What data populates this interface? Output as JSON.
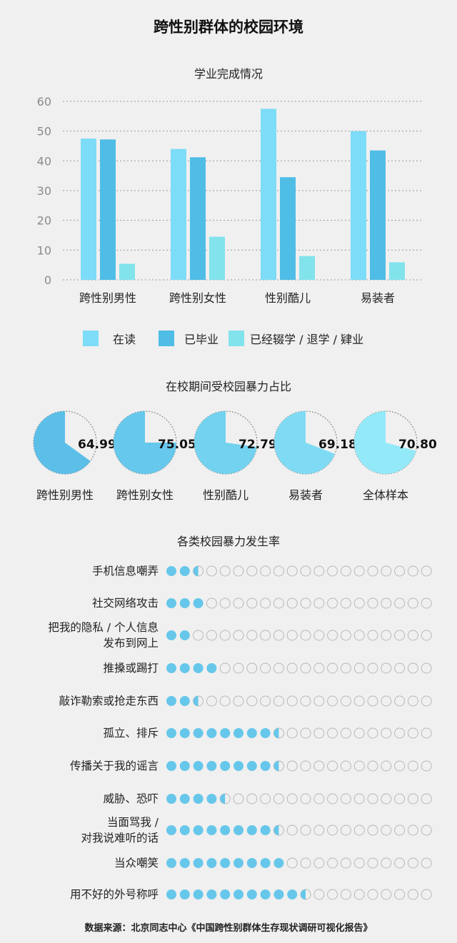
{
  "title": "跨性别群体的校园环境",
  "source": "数据来源：北京同志中心《中国跨性别群体生存现状调研可视化报告》",
  "colors": {
    "bg": "#f0f0f0",
    "series1": "#7ddcf7",
    "series2": "#4fbde6",
    "series3": "#82e3ec",
    "pie_full": [
      "#5cbfe8",
      "#66c8ec",
      "#72d2ef",
      "#7fdbf3",
      "#93e9f8"
    ],
    "dot_fill": "#67c7ea",
    "dot_empty": "#b8b8b8"
  },
  "chart_data": [
    {
      "type": "bar",
      "title": "学业完成情况",
      "categories": [
        "跨性别男性",
        "跨性别女性",
        "性别酷儿",
        "易装者"
      ],
      "series": [
        {
          "name": "在读",
          "values": [
            47.5,
            44,
            57.5,
            50
          ]
        },
        {
          "name": "已毕业",
          "values": [
            47.2,
            41.2,
            34.5,
            43.5
          ]
        },
        {
          "name": "已经辍学 / 退学 / 肄业",
          "values": [
            5.4,
            14.5,
            8,
            5.9
          ]
        }
      ],
      "ylim": [
        0,
        60
      ],
      "yticks": [
        "0",
        "10",
        "20",
        "30",
        "40",
        "50",
        "60"
      ],
      "grid": true,
      "legend": "bottom"
    },
    {
      "type": "pie",
      "title": "在校期间受校园暴力占比",
      "items": [
        {
          "label": "跨性别男性",
          "value": 64.99,
          "text": "64.99"
        },
        {
          "label": "跨性别女性",
          "value": 75.05,
          "text": "75.05"
        },
        {
          "label": "性别酷儿",
          "value": 72.79,
          "text": "72.79"
        },
        {
          "label": "易装者",
          "value": 69.18,
          "text": "69.18"
        },
        {
          "label": "全体样本",
          "value": 70.8,
          "text": "70.80"
        }
      ]
    },
    {
      "type": "dot",
      "title": "各类校园暴力发生率",
      "total_dots": 20,
      "items": [
        {
          "label": [
            "手机信息嘲弄"
          ],
          "filled": 2.5
        },
        {
          "label": [
            "社交网络攻击"
          ],
          "filled": 3
        },
        {
          "label": [
            "把我的隐私 / 个人信息",
            "发布到网上"
          ],
          "filled": 2
        },
        {
          "label": [
            "推搡或踢打"
          ],
          "filled": 4
        },
        {
          "label": [
            "敲诈勒索或抢走东西"
          ],
          "filled": 2.5
        },
        {
          "label": [
            "孤立、排斥"
          ],
          "filled": 8.5
        },
        {
          "label": [
            "传播关于我的谣言"
          ],
          "filled": 8.5
        },
        {
          "label": [
            "威胁、恐吓"
          ],
          "filled": 4.5
        },
        {
          "label": [
            "当面骂我 /",
            "对我说难听的话"
          ],
          "filled": 8.5
        },
        {
          "label": [
            "当众嘲笑"
          ],
          "filled": 9
        },
        {
          "label": [
            "用不好的外号称呼"
          ],
          "filled": 10.5
        }
      ]
    }
  ]
}
